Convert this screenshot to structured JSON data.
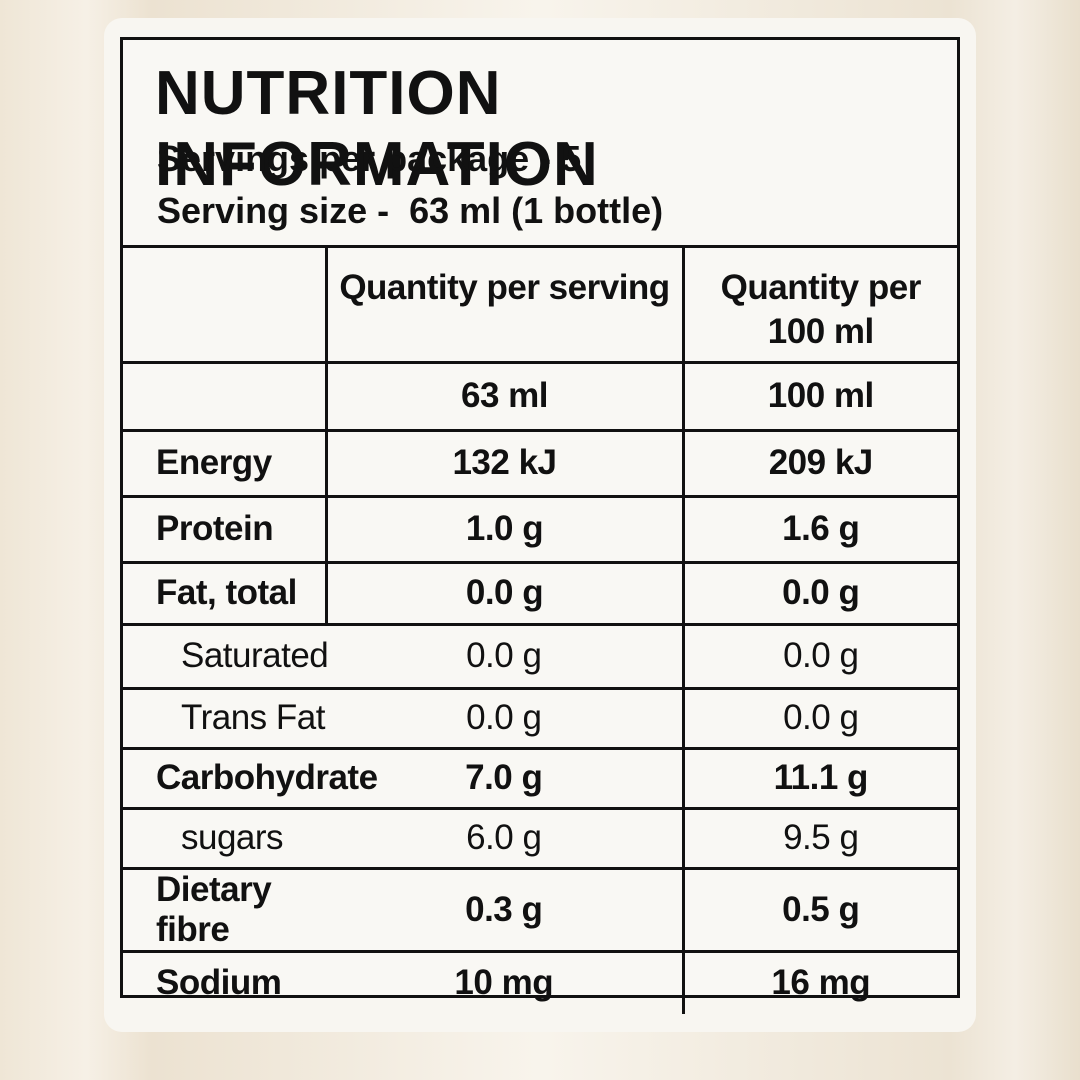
{
  "header": {
    "title": "NUTRITION INFORMATION",
    "servings": "Servings per package - 5",
    "serving_size": "Serving size -  63 ml (1 bottle)"
  },
  "table": {
    "columns": [
      "",
      "Quantity per serving",
      "Quantity per 100 ml"
    ],
    "rows": [
      [
        "",
        "63 ml",
        "100 ml"
      ],
      [
        "Energy",
        "132 kJ",
        "209 kJ"
      ],
      [
        "Protein",
        "1.0 g",
        "1.6 g"
      ],
      [
        "Fat, total",
        "0.0 g",
        "0.0 g"
      ],
      [
        "Saturated",
        "0.0 g",
        "0.0 g"
      ],
      [
        "Trans Fat",
        "0.0 g",
        "0.0 g"
      ],
      [
        "Carbohydrate",
        "7.0 g",
        "11.1 g"
      ],
      [
        "sugars",
        "6.0 g",
        "9.5 g"
      ],
      [
        "Dietary fibre",
        "0.3 g",
        "0.5 g"
      ],
      [
        "Sodium",
        "10 mg",
        "16 mg"
      ]
    ]
  }
}
